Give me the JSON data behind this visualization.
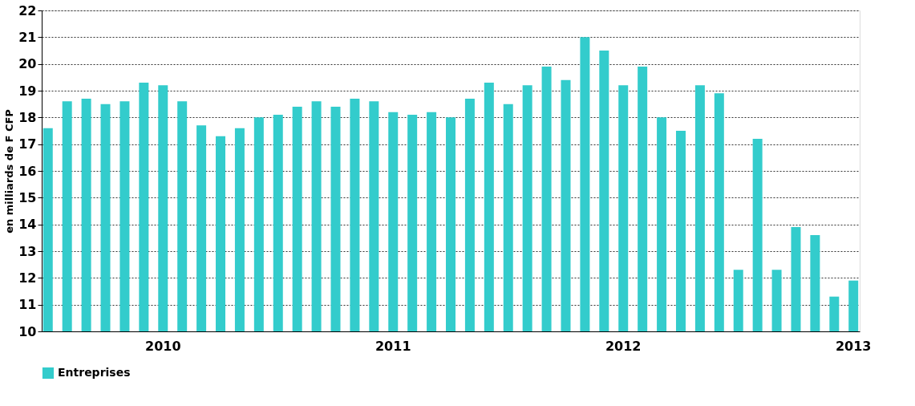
{
  "chart_data": {
    "type": "bar",
    "ylabel": "en  milliards de F CFP",
    "categories": [
      null,
      null,
      null,
      null,
      null,
      null,
      "2010",
      null,
      null,
      null,
      null,
      null,
      null,
      null,
      null,
      null,
      null,
      null,
      "2011",
      null,
      null,
      null,
      null,
      null,
      null,
      null,
      null,
      null,
      null,
      null,
      "2012",
      null,
      null,
      null,
      null,
      null,
      null,
      null,
      null,
      null,
      null,
      null,
      "2013"
    ],
    "series": [
      {
        "name": "Entreprises",
        "color": "#33cccc",
        "values": [
          17.6,
          18.6,
          18.7,
          18.5,
          18.6,
          19.3,
          19.2,
          18.6,
          17.7,
          17.3,
          17.6,
          18.0,
          18.1,
          18.4,
          18.6,
          18.4,
          18.7,
          18.6,
          18.2,
          18.1,
          18.2,
          18.0,
          18.7,
          19.3,
          18.5,
          19.2,
          19.9,
          19.4,
          21.0,
          20.5,
          19.2,
          19.9,
          18.0,
          17.5,
          19.2,
          18.9,
          12.3,
          17.2,
          12.3,
          13.9,
          13.6,
          11.3,
          11.9
        ]
      }
    ],
    "ylim": [
      10,
      22
    ],
    "yticks": [
      10,
      11,
      12,
      13,
      14,
      15,
      16,
      17,
      18,
      19,
      20,
      21,
      22
    ],
    "grid": "y",
    "legend": "bottom"
  }
}
